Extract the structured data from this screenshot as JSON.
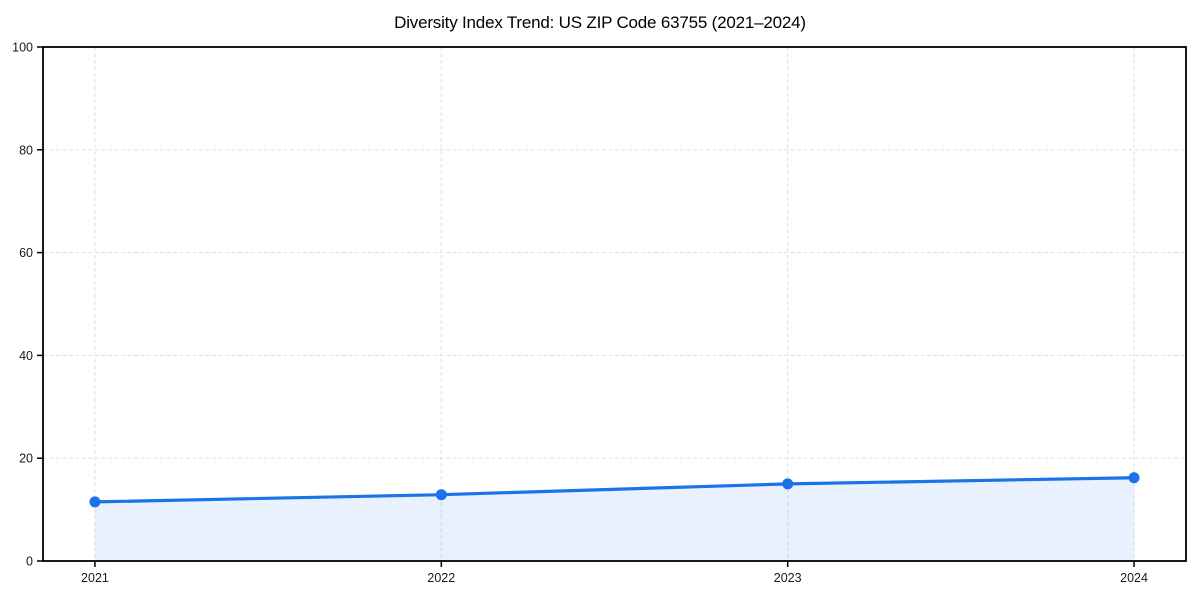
{
  "chart_data": {
    "type": "area",
    "title": "Diversity Index Trend: US ZIP Code 63755 (2021–2024)",
    "x": [
      2021,
      2022,
      2023,
      2024
    ],
    "categories": [
      "2021",
      "2022",
      "2023",
      "2024"
    ],
    "series": [
      {
        "name": "Diversity Index",
        "values": [
          11.5,
          12.9,
          15.0,
          16.2
        ]
      }
    ],
    "xlabel": "",
    "ylabel": "",
    "ylim": [
      0,
      100
    ],
    "yticks": [
      0,
      20,
      40,
      60,
      80,
      100
    ],
    "xticks": [
      2021,
      2022,
      2023,
      2024
    ],
    "x_margin": 0.15,
    "grid": true,
    "grid_style": "dashed",
    "legend_position": "none",
    "colors": {
      "line": "#1a73e8",
      "marker": "#1a73e8",
      "fill": "#1a73e8",
      "fill_opacity": 0.1,
      "grid": "#e3e3e3",
      "spine": "#000000",
      "tick_label": "#1a1a1a",
      "title": "#000000",
      "background": "#ffffff"
    }
  }
}
